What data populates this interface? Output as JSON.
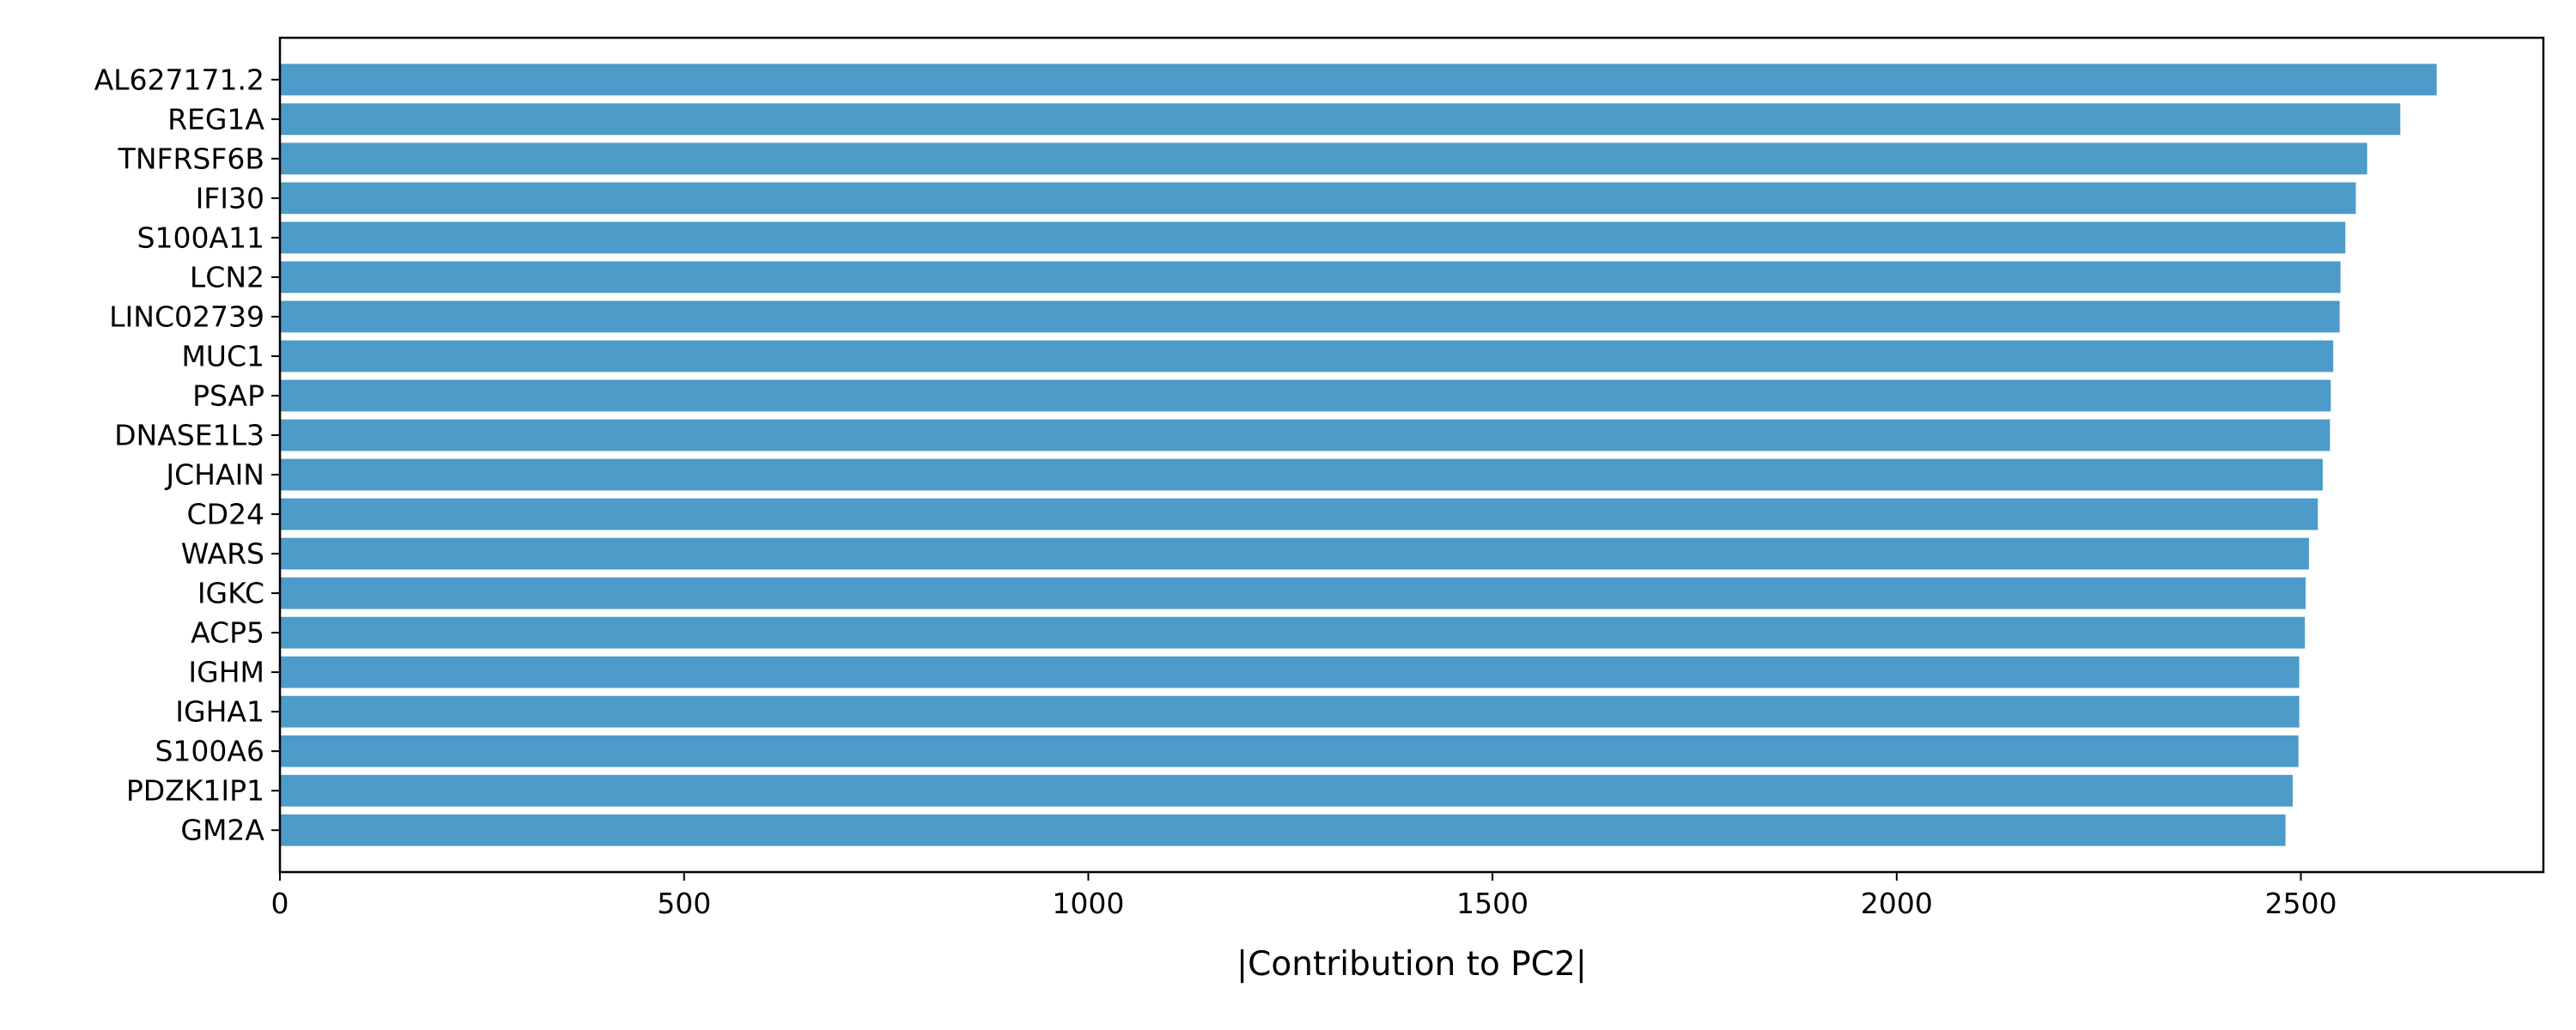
{
  "chart_data": {
    "type": "bar",
    "orientation": "horizontal",
    "categories": [
      "AL627171.2",
      "REG1A",
      "TNFRSF6B",
      "IFI30",
      "S100A11",
      "LCN2",
      "LINC02739",
      "MUC1",
      "PSAP",
      "DNASE1L3",
      "JCHAIN",
      "CD24",
      "WARS",
      "IGKC",
      "ACP5",
      "IGHM",
      "IGHA1",
      "S100A6",
      "PDZK1IP1",
      "GM2A"
    ],
    "values": [
      2668,
      2623,
      2582,
      2568,
      2555,
      2549,
      2548,
      2540,
      2537,
      2536,
      2527,
      2521,
      2510,
      2506,
      2505,
      2498,
      2498,
      2497,
      2490,
      2481
    ],
    "title": "",
    "xlabel": "|Contribution to PC2|",
    "ylabel": "",
    "xlim": [
      0,
      2800
    ],
    "xticks": [
      0,
      500,
      1000,
      1500,
      2000,
      2500
    ],
    "grid": false,
    "bar_color": "#4c9bc9"
  }
}
